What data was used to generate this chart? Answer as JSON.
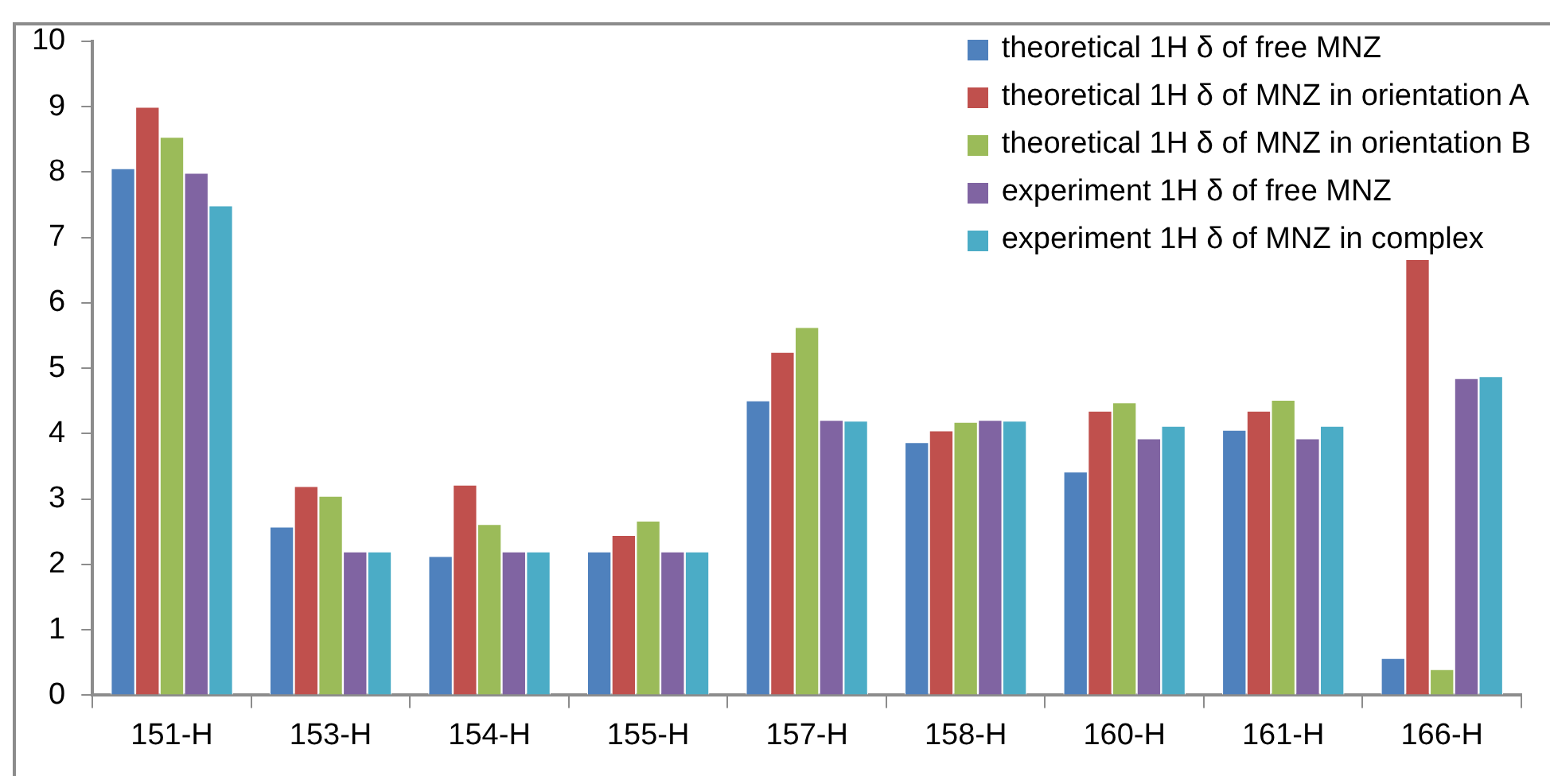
{
  "chart_data": {
    "type": "bar",
    "categories": [
      "151-H",
      "153-H",
      "154-H",
      "155-H",
      "157-H",
      "158-H",
      "160-H",
      "161-H",
      "166-H"
    ],
    "series": [
      {
        "name": "theoretical 1H δ of free MNZ",
        "color": "#4f81bd",
        "values": [
          8.06,
          2.58,
          2.13,
          2.2,
          4.51,
          3.87,
          3.42,
          4.06,
          0.57
        ]
      },
      {
        "name": "theoretical 1H δ of MNZ in orientation A",
        "color": "#c0504d",
        "values": [
          9.0,
          3.2,
          3.22,
          2.45,
          5.25,
          4.05,
          4.35,
          4.35,
          6.67
        ]
      },
      {
        "name": "theoretical 1H δ of MNZ in orientation B",
        "color": "#9bbb59",
        "values": [
          8.54,
          3.05,
          2.62,
          2.67,
          5.63,
          4.18,
          4.48,
          4.52,
          0.4
        ]
      },
      {
        "name": "experiment 1H δ of free MNZ",
        "color": "#8064a2",
        "values": [
          7.99,
          2.2,
          2.2,
          2.2,
          4.21,
          4.21,
          3.93,
          3.93,
          4.85
        ]
      },
      {
        "name": "experiment 1H δ of MNZ in complex",
        "color": "#4bacc6",
        "values": [
          7.49,
          2.2,
          2.2,
          2.2,
          4.2,
          4.2,
          4.12,
          4.12,
          4.88
        ]
      }
    ],
    "ylim": [
      0,
      10
    ],
    "yticks": [
      0,
      1,
      2,
      3,
      4,
      5,
      6,
      7,
      8,
      9,
      10
    ],
    "grid": false,
    "legend": "top right"
  }
}
